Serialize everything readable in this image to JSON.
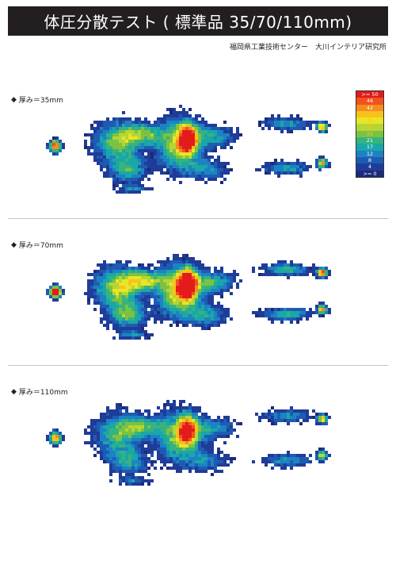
{
  "header": {
    "title": "体圧分散テスト ( 標準品 35/70/110mm)",
    "credit": "福岡県工業技術センター　大川インテリア研究所"
  },
  "sections": [
    {
      "label": "厚み＝35mm",
      "intensity": 1.0
    },
    {
      "label": "厚み＝70mm",
      "intensity": 1.15
    },
    {
      "label": "厚み＝110mm",
      "intensity": 0.9
    }
  ],
  "legend": {
    "levels": [
      {
        "label": ">= 50",
        "color": "#e41b1b"
      },
      {
        "label": "46",
        "color": "#f2521d"
      },
      {
        "label": "42",
        "color": "#f68b1f"
      },
      {
        "label": "37",
        "color": "#f8c21b"
      },
      {
        "label": "33",
        "color": "#e9e626"
      },
      {
        "label": "29",
        "color": "#b4d635"
      },
      {
        "label": "25",
        "color": "#7cc242"
      },
      {
        "label": "21",
        "color": "#36b37e"
      },
      {
        "label": "17",
        "color": "#19a7a8"
      },
      {
        "label": "12",
        "color": "#1d82c4"
      },
      {
        "label": "8",
        "color": "#1e5cb3"
      },
      {
        "label": "4",
        "color": "#1f3c99"
      },
      {
        "label": ">= 0",
        "color": "#1b2a7a"
      }
    ]
  }
}
